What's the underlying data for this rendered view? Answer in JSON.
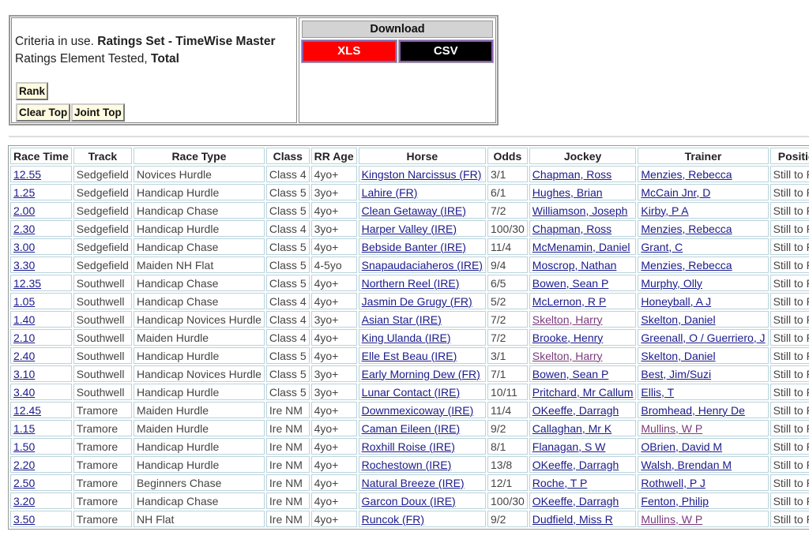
{
  "criteria": {
    "prefix": "Criteria in use.",
    "ratings_set": "Ratings Set - TimeWise Master",
    "element_prefix": "Ratings Element Tested,",
    "element": "Total"
  },
  "buttons": {
    "rank": "Rank",
    "clear_top": "Clear Top",
    "joint_top": "Joint Top"
  },
  "download": {
    "title": "Download",
    "xls": "XLS",
    "csv": "CSV",
    "xls_color": "#ff0000",
    "csv_color": "#000000"
  },
  "table": {
    "headers": [
      "Race Time",
      "Track",
      "Race Type",
      "Class",
      "RR Age",
      "Horse",
      "Odds",
      "Jockey",
      "Trainer",
      "Position"
    ],
    "rows": [
      [
        "12.55",
        "Sedgefield",
        "Novices Hurdle",
        "Class 4",
        "4yo+",
        "Kingston Narcissus (FR)",
        "3/1",
        "Chapman, Ross",
        "Menzies, Rebecca",
        "Still to Run"
      ],
      [
        "1.25",
        "Sedgefield",
        "Handicap Hurdle",
        "Class 5",
        "3yo+",
        "Lahire (FR)",
        "6/1",
        "Hughes, Brian",
        "McCain Jnr, D",
        "Still to Run"
      ],
      [
        "2.00",
        "Sedgefield",
        "Handicap Chase",
        "Class 5",
        "4yo+",
        "Clean Getaway (IRE)",
        "7/2",
        "Williamson, Joseph",
        "Kirby, P A",
        "Still to Run"
      ],
      [
        "2.30",
        "Sedgefield",
        "Handicap Hurdle",
        "Class 4",
        "3yo+",
        "Harper Valley (IRE)",
        "100/30",
        "Chapman, Ross",
        "Menzies, Rebecca",
        "Still to Run"
      ],
      [
        "3.00",
        "Sedgefield",
        "Handicap Chase",
        "Class 5",
        "4yo+",
        "Bebside Banter (IRE)",
        "11/4",
        "McMenamin, Daniel",
        "Grant, C",
        "Still to Run"
      ],
      [
        "3.30",
        "Sedgefield",
        "Maiden NH Flat",
        "Class 5",
        "4-5yo",
        "Snapaudaciaheros (IRE)",
        "9/4",
        "Moscrop, Nathan",
        "Menzies, Rebecca",
        "Still to Run"
      ],
      [
        "12.35",
        "Southwell",
        "Handicap Chase",
        "Class 5",
        "4yo+",
        "Northern Reel (IRE)",
        "6/5",
        "Bowen, Sean P",
        "Murphy, Olly",
        "Still to Run"
      ],
      [
        "1.05",
        "Southwell",
        "Handicap Chase",
        "Class 4",
        "4yo+",
        "Jasmin De Grugy (FR)",
        "5/2",
        "McLernon, R P",
        "Honeyball, A J",
        "Still to Run"
      ],
      [
        "1.40",
        "Southwell",
        "Handicap Novices Hurdle",
        "Class 4",
        "3yo+",
        "Asian Star (IRE)",
        "7/2",
        "Skelton, Harry",
        "Skelton, Daniel",
        "Still to Run"
      ],
      [
        "2.10",
        "Southwell",
        "Maiden Hurdle",
        "Class 4",
        "4yo+",
        "King Ulanda (IRE)",
        "7/2",
        "Brooke, Henry",
        "Greenall, O / Guerriero, J",
        "Still to Run"
      ],
      [
        "2.40",
        "Southwell",
        "Handicap Hurdle",
        "Class 5",
        "4yo+",
        "Elle Est Beau (IRE)",
        "3/1",
        "Skelton, Harry",
        "Skelton, Daniel",
        "Still to Run"
      ],
      [
        "3.10",
        "Southwell",
        "Handicap Novices Hurdle",
        "Class 5",
        "3yo+",
        "Early Morning Dew (FR)",
        "7/1",
        "Bowen, Sean P",
        "Best, Jim/Suzi",
        "Still to Run"
      ],
      [
        "3.40",
        "Southwell",
        "Handicap Hurdle",
        "Class 5",
        "3yo+",
        "Lunar Contact (IRE)",
        "10/11",
        "Pritchard, Mr Callum",
        "Ellis, T",
        "Still to Run"
      ],
      [
        "12.45",
        "Tramore",
        "Maiden Hurdle",
        "Ire NM",
        "4yo+",
        "Downmexicoway (IRE)",
        "11/4",
        "OKeeffe, Darragh",
        "Bromhead, Henry De",
        "Still to Run"
      ],
      [
        "1.15",
        "Tramore",
        "Maiden Hurdle",
        "Ire NM",
        "4yo+",
        "Caman Eileen (IRE)",
        "9/2",
        "Callaghan, Mr K",
        "Mullins, W P",
        "Still to Run"
      ],
      [
        "1.50",
        "Tramore",
        "Handicap Hurdle",
        "Ire NM",
        "4yo+",
        "Roxhill Roise (IRE)",
        "8/1",
        "Flanagan, S W",
        "OBrien, David M",
        "Still to Run"
      ],
      [
        "2.20",
        "Tramore",
        "Handicap Hurdle",
        "Ire NM",
        "4yo+",
        "Rochestown (IRE)",
        "13/8",
        "OKeeffe, Darragh",
        "Walsh, Brendan M",
        "Still to Run"
      ],
      [
        "2.50",
        "Tramore",
        "Beginners Chase",
        "Ire NM",
        "4yo+",
        "Natural Breeze (IRE)",
        "12/1",
        "Roche, T P",
        "Rothwell, P J",
        "Still to Run"
      ],
      [
        "3.20",
        "Tramore",
        "Handicap Chase",
        "Ire NM",
        "4yo+",
        "Garcon Doux (IRE)",
        "100/30",
        "OKeeffe, Darragh",
        "Fenton, Philip",
        "Still to Run"
      ],
      [
        "3.50",
        "Tramore",
        "NH Flat",
        "Ire NM",
        "4yo+",
        "Runcok (FR)",
        "9/2",
        "Dudfield, Miss R",
        "Mullins, W P",
        "Still to Run"
      ]
    ],
    "visited_links": [
      "Skelton, Harry",
      "Mullins, W P"
    ]
  }
}
